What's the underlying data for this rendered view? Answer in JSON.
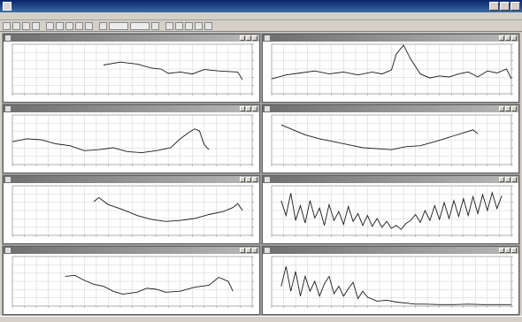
{
  "window": {
    "title": ""
  },
  "menu": [
    "",
    "",
    "",
    "",
    "",
    "",
    ""
  ],
  "toolbar": {
    "icons": [
      "new-icon",
      "open-icon",
      "save-icon",
      "print-icon",
      "cursor-icon",
      "zoom-icon",
      "measure-icon",
      "grid-icon",
      "channel-icon",
      "wave-icon",
      "scale-icon",
      "expand-icon",
      "layout-icon",
      "tile-icon",
      "cascade-icon",
      "config-icon",
      "info-icon",
      "help-icon"
    ]
  },
  "panels": [
    {
      "title": ""
    },
    {
      "title": ""
    },
    {
      "title": ""
    },
    {
      "title": ""
    },
    {
      "title": ""
    },
    {
      "title": ""
    },
    {
      "title": ""
    },
    {
      "title": ""
    }
  ],
  "colors": {
    "trace": "#1a1a1a",
    "grid": "#cfcfcf",
    "workspace": "#9a9a9a"
  },
  "chart_data": [
    {
      "type": "line",
      "title": "",
      "xlim": [
        0,
        100
      ],
      "ylim": [
        0,
        100
      ],
      "series": [
        {
          "x": [
            0,
            10,
            20,
            28,
            36,
            38,
            45,
            52,
            58,
            62,
            65,
            70,
            75,
            80,
            86,
            90,
            94,
            96,
            100
          ],
          "y": [
            null,
            null,
            null,
            null,
            null,
            58,
            64,
            60,
            52,
            50,
            41,
            44,
            40,
            49,
            46,
            45,
            44,
            28,
            null
          ]
        }
      ]
    },
    {
      "type": "line",
      "title": "",
      "xlim": [
        0,
        100
      ],
      "ylim": [
        0,
        100
      ],
      "series": [
        {
          "x": [
            0,
            6,
            12,
            18,
            24,
            30,
            36,
            42,
            46,
            50,
            52,
            55,
            58,
            62,
            66,
            70,
            74,
            78,
            82,
            86,
            90,
            94,
            98,
            100
          ],
          "y": [
            30,
            38,
            42,
            46,
            40,
            44,
            38,
            44,
            40,
            48,
            80,
            98,
            70,
            40,
            32,
            36,
            34,
            40,
            44,
            34,
            46,
            42,
            50,
            30
          ]
        }
      ]
    },
    {
      "type": "line",
      "title": "",
      "xlim": [
        0,
        100
      ],
      "ylim": [
        0,
        100
      ],
      "series": [
        {
          "x": [
            0,
            6,
            12,
            18,
            24,
            30,
            36,
            42,
            48,
            54,
            60,
            66,
            70,
            74,
            76,
            78,
            80,
            82,
            100
          ],
          "y": [
            46,
            52,
            50,
            42,
            38,
            28,
            30,
            34,
            26,
            24,
            28,
            34,
            52,
            66,
            72,
            68,
            40,
            30,
            null
          ]
        }
      ]
    },
    {
      "type": "line",
      "title": "",
      "xlim": [
        0,
        100
      ],
      "ylim": [
        0,
        100
      ],
      "series": [
        {
          "x": [
            0,
            4,
            8,
            14,
            20,
            26,
            32,
            38,
            44,
            50,
            56,
            62,
            68,
            72,
            76,
            80,
            84,
            86
          ],
          "y": [
            null,
            80,
            72,
            60,
            52,
            46,
            40,
            34,
            32,
            30,
            36,
            38,
            46,
            52,
            58,
            64,
            70,
            62
          ]
        }
      ]
    },
    {
      "type": "line",
      "title": "",
      "xlim": [
        0,
        100
      ],
      "ylim": [
        0,
        100
      ],
      "series": [
        {
          "x": [
            0,
            20,
            30,
            32,
            34,
            36,
            40,
            46,
            52,
            58,
            64,
            70,
            76,
            82,
            88,
            92,
            94,
            96
          ],
          "y": [
            null,
            null,
            null,
            null,
            68,
            76,
            62,
            52,
            40,
            32,
            28,
            30,
            34,
            42,
            48,
            56,
            64,
            50
          ]
        }
      ]
    },
    {
      "type": "line",
      "title": "",
      "xlim": [
        0,
        100
      ],
      "ylim": [
        0,
        100
      ],
      "series": [
        {
          "x": [
            0,
            4,
            6,
            8,
            10,
            12,
            14,
            16,
            18,
            20,
            22,
            24,
            26,
            28,
            30,
            32,
            34,
            36,
            38,
            40,
            42,
            44,
            46,
            48,
            50,
            52,
            54,
            56,
            58,
            60,
            62,
            64,
            66,
            68,
            70,
            72,
            74,
            76,
            78,
            80,
            82,
            84,
            86,
            88,
            90,
            92,
            94,
            96,
            98
          ],
          "y": [
            null,
            70,
            40,
            85,
            30,
            60,
            25,
            70,
            35,
            55,
            20,
            62,
            30,
            48,
            22,
            58,
            28,
            44,
            20,
            40,
            18,
            34,
            16,
            28,
            14,
            20,
            12,
            24,
            30,
            42,
            26,
            50,
            30,
            60,
            32,
            66,
            34,
            70,
            38,
            74,
            40,
            78,
            44,
            82,
            50,
            86,
            54,
            80,
            null
          ]
        }
      ]
    },
    {
      "type": "line",
      "title": "",
      "xlim": [
        0,
        100
      ],
      "ylim": [
        0,
        100
      ],
      "series": [
        {
          "x": [
            0,
            10,
            16,
            20,
            22,
            26,
            30,
            34,
            38,
            42,
            46,
            52,
            56,
            60,
            64,
            70,
            76,
            82,
            86,
            90,
            92,
            94
          ],
          "y": [
            null,
            null,
            null,
            null,
            60,
            62,
            52,
            44,
            40,
            30,
            24,
            28,
            36,
            34,
            28,
            30,
            38,
            42,
            58,
            50,
            30,
            null
          ]
        }
      ]
    },
    {
      "type": "line",
      "title": "",
      "xlim": [
        0,
        100
      ],
      "ylim": [
        0,
        100
      ],
      "series": [
        {
          "x": [
            0,
            4,
            6,
            8,
            10,
            12,
            14,
            16,
            18,
            20,
            22,
            24,
            26,
            28,
            30,
            32,
            34,
            36,
            38,
            40,
            44,
            48,
            52,
            56,
            60,
            64,
            70,
            76,
            82,
            88,
            94,
            100
          ],
          "y": [
            null,
            40,
            80,
            30,
            70,
            20,
            60,
            30,
            50,
            20,
            45,
            60,
            25,
            40,
            20,
            35,
            48,
            15,
            30,
            18,
            10,
            12,
            8,
            6,
            4,
            4,
            3,
            3,
            4,
            3,
            3,
            3
          ]
        }
      ]
    }
  ]
}
